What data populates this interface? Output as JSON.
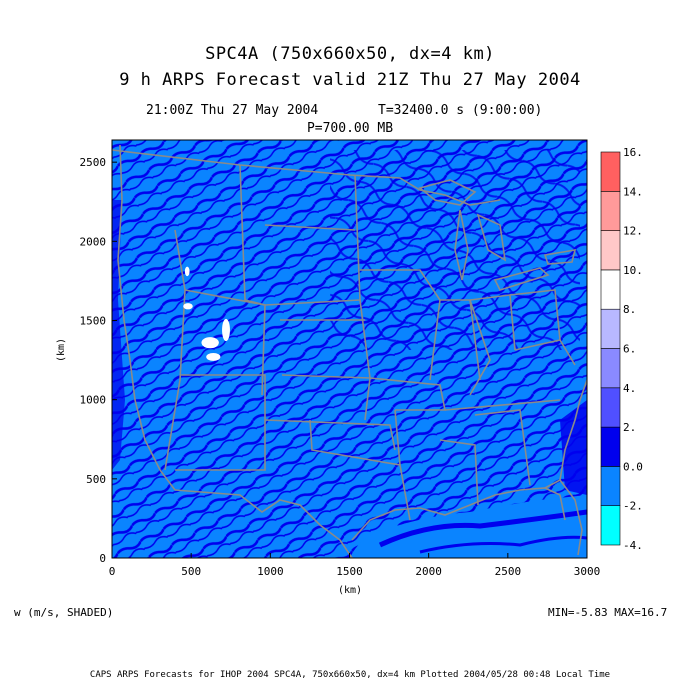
{
  "title": "SPC4A (750x660x50, dx=4 km)",
  "subtitle": "9 h ARPS Forecast valid 21Z Thu 27 May 2004",
  "time_line": "21:00Z Thu 27 May 2004",
  "timestep_line": "T=32400.0 s (9:00:00)",
  "pressure_line": "P=700.00 MB",
  "variable_label": "w (m/s, SHADED)",
  "minmax_label": "MIN=-5.83 MAX=16.7",
  "footer": "CAPS ARPS Forecasts for IHOP 2004   SPC4A, 750x660x50, dx=4 km  Plotted 2004/05/28 00:48 Local Time",
  "colors": {
    "background_field": "#0a84ff",
    "updraft_band": "#0000ee",
    "strong_updraft": "#ffffff",
    "borders": "#8a8a8a"
  },
  "chart_data": {
    "type": "heatmap",
    "xlabel": "(km)",
    "ylabel": "(km)",
    "xlim": [
      0,
      3000
    ],
    "ylim": [
      0,
      2640
    ],
    "x_ticks": [
      0,
      500,
      1000,
      1500,
      2000,
      2500,
      3000
    ],
    "y_ticks": [
      0,
      500,
      1000,
      1500,
      2000,
      2500
    ],
    "colorbar": {
      "bins": [
        {
          "from": -4,
          "to": -2,
          "color": "#00ffff"
        },
        {
          "from": -2,
          "to": 0,
          "color": "#0a84ff"
        },
        {
          "from": 0,
          "to": 2,
          "color": "#0000ee"
        },
        {
          "from": 2,
          "to": 4,
          "color": "#5050ff"
        },
        {
          "from": 4,
          "to": 6,
          "color": "#8a8aff"
        },
        {
          "from": 6,
          "to": 8,
          "color": "#b8b8ff"
        },
        {
          "from": 8,
          "to": 10,
          "color": "#ffffff"
        },
        {
          "from": 10,
          "to": 12,
          "color": "#ffc8c8"
        },
        {
          "from": 12,
          "to": 14,
          "color": "#ff9a9a"
        },
        {
          "from": 14,
          "to": 16,
          "color": "#ff6060"
        }
      ],
      "tick_labels": [
        "16.",
        "14.",
        "12.",
        "10.",
        "8.",
        "6.",
        "4.",
        "2.",
        "0.0",
        "-2.",
        "-4."
      ]
    },
    "updraft_areas_km": [
      {
        "x": 620,
        "y": 1360,
        "rx": 55,
        "ry": 35
      },
      {
        "x": 720,
        "y": 1440,
        "rx": 25,
        "ry": 70
      },
      {
        "x": 640,
        "y": 1270,
        "rx": 45,
        "ry": 25
      },
      {
        "x": 480,
        "y": 1590,
        "rx": 30,
        "ry": 20
      },
      {
        "x": 475,
        "y": 1810,
        "rx": 15,
        "ry": 30
      }
    ]
  }
}
